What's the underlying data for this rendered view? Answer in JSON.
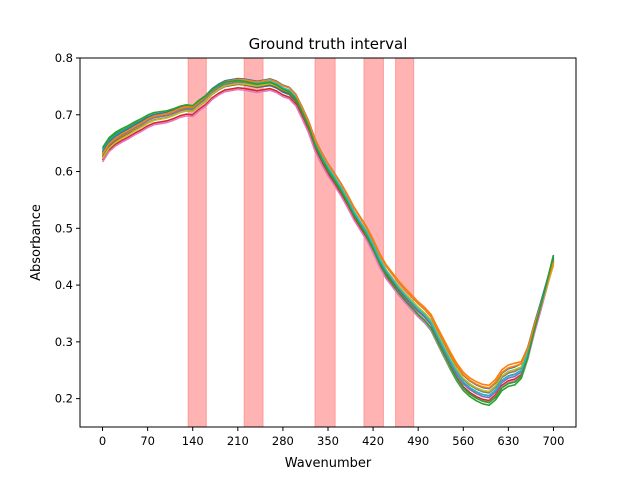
{
  "chart_data": {
    "type": "line",
    "title": "Ground truth interval",
    "xlabel": "Wavenumber",
    "ylabel": "Absorbance",
    "xlim": [
      -35,
      735
    ],
    "ylim": [
      0.15,
      0.8
    ],
    "xticks": [
      0,
      70,
      140,
      210,
      280,
      350,
      420,
      490,
      560,
      630,
      700
    ],
    "yticks": [
      0.2,
      0.3,
      0.4,
      0.5,
      0.6,
      0.7,
      0.8
    ],
    "grid": false,
    "highlight_color": "#ff9999",
    "highlighted_intervals": [
      [
        133,
        161
      ],
      [
        220,
        249
      ],
      [
        330,
        361
      ],
      [
        406,
        436
      ],
      [
        455,
        483
      ]
    ],
    "base_curve": {
      "x": [
        0,
        10,
        20,
        30,
        40,
        50,
        60,
        70,
        80,
        90,
        100,
        110,
        120,
        130,
        140,
        150,
        160,
        170,
        180,
        190,
        200,
        210,
        220,
        230,
        240,
        250,
        260,
        270,
        280,
        290,
        300,
        310,
        320,
        330,
        340,
        350,
        360,
        370,
        380,
        390,
        400,
        410,
        420,
        430,
        440,
        450,
        460,
        470,
        480,
        490,
        500,
        510,
        520,
        530,
        540,
        550,
        560,
        570,
        580,
        590,
        600,
        610,
        620,
        630,
        640,
        650,
        660,
        670,
        680,
        690,
        700
      ],
      "y": [
        0.627,
        0.645,
        0.655,
        0.662,
        0.668,
        0.675,
        0.681,
        0.688,
        0.693,
        0.695,
        0.697,
        0.701,
        0.706,
        0.709,
        0.708,
        0.718,
        0.726,
        0.738,
        0.746,
        0.752,
        0.754,
        0.756,
        0.755,
        0.753,
        0.751,
        0.753,
        0.755,
        0.751,
        0.744,
        0.74,
        0.728,
        0.705,
        0.68,
        0.648,
        0.625,
        0.605,
        0.588,
        0.57,
        0.55,
        0.528,
        0.51,
        0.492,
        0.47,
        0.445,
        0.425,
        0.41,
        0.395,
        0.382,
        0.37,
        0.358,
        0.348,
        0.335,
        0.312,
        0.29,
        0.268,
        0.248,
        0.232,
        0.222,
        0.215,
        0.21,
        0.208,
        0.218,
        0.235,
        0.243,
        0.246,
        0.252,
        0.28,
        0.322,
        0.36,
        0.4,
        0.44
      ]
    },
    "series": [
      {
        "color": "#1f77b4",
        "offset_start": 0.005,
        "offset_end": -0.018,
        "end_offset": 0.01
      },
      {
        "color": "#ff7f0e",
        "offset_start": 0.0,
        "offset_end": 0.018,
        "end_offset": -0.005
      },
      {
        "color": "#2ca02c",
        "offset_start": 0.012,
        "offset_end": -0.025,
        "end_offset": 0.013
      },
      {
        "color": "#d62728",
        "offset_start": -0.007,
        "offset_end": -0.012,
        "end_offset": 0.0
      },
      {
        "color": "#9467bd",
        "offset_start": 0.003,
        "offset_end": -0.008,
        "end_offset": 0.004
      },
      {
        "color": "#8c564b",
        "offset_start": -0.002,
        "offset_end": -0.003,
        "end_offset": 0.002
      },
      {
        "color": "#e377c2",
        "offset_start": -0.01,
        "offset_end": -0.015,
        "end_offset": -0.002
      },
      {
        "color": "#7f7f7f",
        "offset_start": 0.002,
        "offset_end": 0.002,
        "end_offset": 0.003
      },
      {
        "color": "#bcbd22",
        "offset_start": -0.004,
        "offset_end": 0.006,
        "end_offset": -0.003
      },
      {
        "color": "#17becf",
        "offset_start": 0.009,
        "offset_end": -0.005,
        "end_offset": 0.006
      },
      {
        "color": "#1f77b4",
        "offset_start": 0.007,
        "offset_end": 0.01,
        "end_offset": 0.008
      },
      {
        "color": "#ff7f0e",
        "offset_start": 0.004,
        "offset_end": 0.012,
        "end_offset": 0.001
      },
      {
        "color": "#2ca02c",
        "offset_start": 0.015,
        "offset_end": -0.02,
        "end_offset": 0.012
      }
    ]
  }
}
